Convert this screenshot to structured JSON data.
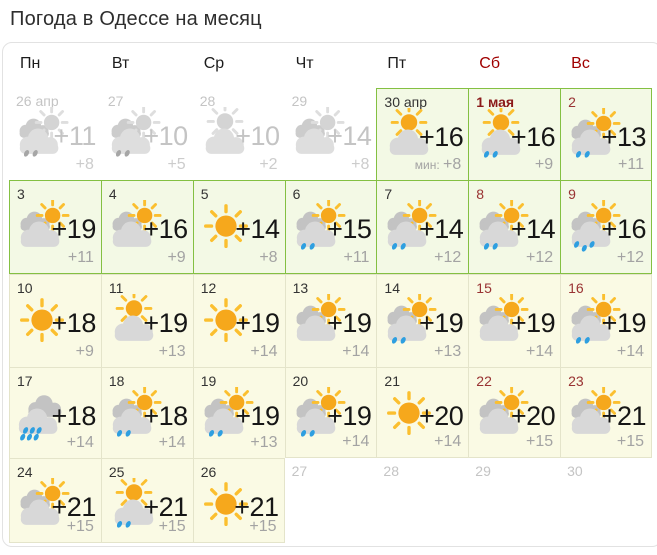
{
  "page": {
    "title": "Погода в Одессе на месяц"
  },
  "weekdays": [
    {
      "label": "Пн",
      "type": "weekday"
    },
    {
      "label": "Вт",
      "type": "weekday"
    },
    {
      "label": "Ср",
      "type": "weekday"
    },
    {
      "label": "Чт",
      "type": "weekday"
    },
    {
      "label": "Пт",
      "type": "weekday"
    },
    {
      "label": "Сб",
      "type": "weekend"
    },
    {
      "label": "Вс",
      "type": "weekend"
    }
  ],
  "days": [
    {
      "date": "26 апр",
      "date_style": "past",
      "cell": "past",
      "icon": "cloud-sun",
      "drops": 2,
      "gray": true,
      "temp": "+11",
      "low": "+8"
    },
    {
      "date": "27",
      "date_style": "past",
      "cell": "past",
      "icon": "cloud-sun",
      "drops": 2,
      "gray": true,
      "temp": "+10",
      "low": "+5"
    },
    {
      "date": "28",
      "date_style": "past",
      "cell": "past",
      "icon": "sun-cloud",
      "drops": 0,
      "gray": true,
      "temp": "+10",
      "low": "+2"
    },
    {
      "date": "29",
      "date_style": "past",
      "cell": "past",
      "icon": "cloud-sun",
      "drops": 0,
      "gray": true,
      "temp": "+14",
      "low": "+8"
    },
    {
      "date": "30 апр",
      "date_style": "normal",
      "cell": "green",
      "icon": "sun-cloud",
      "drops": 0,
      "gray": false,
      "temp": "+16",
      "low": "+8",
      "low_prefix": "мин: "
    },
    {
      "date": "1 мая",
      "date_style": "holiday",
      "cell": "green",
      "icon": "sun-cloud",
      "drops": 2,
      "gray": false,
      "temp": "+16",
      "low": "+9"
    },
    {
      "date": "2",
      "date_style": "weekend",
      "cell": "green",
      "icon": "cloud-sun",
      "drops": 2,
      "gray": false,
      "temp": "+13",
      "low": "+11"
    },
    {
      "date": "3",
      "date_style": "normal",
      "cell": "green",
      "icon": "cloud-sun",
      "drops": 0,
      "gray": false,
      "temp": "+19",
      "low": "+11"
    },
    {
      "date": "4",
      "date_style": "normal",
      "cell": "green",
      "icon": "cloud-sun",
      "drops": 0,
      "gray": false,
      "temp": "+16",
      "low": "+9"
    },
    {
      "date": "5",
      "date_style": "normal",
      "cell": "green",
      "icon": "sun",
      "drops": 0,
      "gray": false,
      "temp": "+14",
      "low": "+8"
    },
    {
      "date": "6",
      "date_style": "normal",
      "cell": "green",
      "icon": "cloud-sun",
      "drops": 2,
      "gray": false,
      "temp": "+15",
      "low": "+11"
    },
    {
      "date": "7",
      "date_style": "normal",
      "cell": "green",
      "icon": "cloud-sun",
      "drops": 2,
      "gray": false,
      "temp": "+14",
      "low": "+12"
    },
    {
      "date": "8",
      "date_style": "weekend",
      "cell": "green",
      "icon": "cloud-sun",
      "drops": 2,
      "gray": false,
      "temp": "+14",
      "low": "+12"
    },
    {
      "date": "9",
      "date_style": "weekend",
      "cell": "green",
      "icon": "cloud-sun",
      "drops": 3,
      "gray": false,
      "temp": "+16",
      "low": "+12"
    },
    {
      "date": "10",
      "date_style": "normal",
      "cell": "yellow",
      "icon": "sun",
      "drops": 0,
      "gray": false,
      "temp": "+18",
      "low": "+9"
    },
    {
      "date": "11",
      "date_style": "normal",
      "cell": "yellow",
      "icon": "sun-cloud",
      "drops": 0,
      "gray": false,
      "temp": "+19",
      "low": "+13"
    },
    {
      "date": "12",
      "date_style": "normal",
      "cell": "yellow",
      "icon": "sun",
      "drops": 0,
      "gray": false,
      "temp": "+19",
      "low": "+14"
    },
    {
      "date": "13",
      "date_style": "normal",
      "cell": "yellow",
      "icon": "cloud-sun",
      "drops": 0,
      "gray": false,
      "temp": "+19",
      "low": "+14"
    },
    {
      "date": "14",
      "date_style": "normal",
      "cell": "yellow",
      "icon": "cloud-sun",
      "drops": 2,
      "gray": false,
      "temp": "+19",
      "low": "+13"
    },
    {
      "date": "15",
      "date_style": "weekend",
      "cell": "yellow",
      "icon": "cloud-sun",
      "drops": 0,
      "gray": false,
      "temp": "+19",
      "low": "+14"
    },
    {
      "date": "16",
      "date_style": "weekend",
      "cell": "yellow",
      "icon": "cloud-sun",
      "drops": 2,
      "gray": false,
      "temp": "+19",
      "low": "+14"
    },
    {
      "date": "17",
      "date_style": "normal",
      "cell": "yellow",
      "icon": "clouds",
      "drops": 6,
      "gray": false,
      "temp": "+18",
      "low": "+14"
    },
    {
      "date": "18",
      "date_style": "normal",
      "cell": "yellow",
      "icon": "cloud-sun",
      "drops": 2,
      "gray": false,
      "temp": "+18",
      "low": "+14"
    },
    {
      "date": "19",
      "date_style": "normal",
      "cell": "yellow",
      "icon": "cloud-sun",
      "drops": 2,
      "gray": false,
      "temp": "+19",
      "low": "+13"
    },
    {
      "date": "20",
      "date_style": "normal",
      "cell": "yellow",
      "icon": "cloud-sun",
      "drops": 2,
      "gray": false,
      "temp": "+19",
      "low": "+14"
    },
    {
      "date": "21",
      "date_style": "normal",
      "cell": "yellow",
      "icon": "sun",
      "drops": 0,
      "gray": false,
      "temp": "+20",
      "low": "+14"
    },
    {
      "date": "22",
      "date_style": "weekend",
      "cell": "yellow",
      "icon": "cloud-sun",
      "drops": 0,
      "gray": false,
      "temp": "+20",
      "low": "+15"
    },
    {
      "date": "23",
      "date_style": "weekend",
      "cell": "yellow",
      "icon": "cloud-sun",
      "drops": 0,
      "gray": false,
      "temp": "+21",
      "low": "+15"
    },
    {
      "date": "24",
      "date_style": "normal",
      "cell": "yellow",
      "icon": "cloud-sun",
      "drops": 0,
      "gray": false,
      "temp": "+21",
      "low": "+15"
    },
    {
      "date": "25",
      "date_style": "normal",
      "cell": "yellow",
      "icon": "sun-cloud",
      "drops": 2,
      "gray": false,
      "temp": "+21",
      "low": "+15"
    },
    {
      "date": "26",
      "date_style": "normal",
      "cell": "yellow",
      "icon": "sun",
      "drops": 0,
      "gray": false,
      "temp": "+21",
      "low": "+15"
    },
    {
      "date": "27",
      "date_style": "future",
      "cell": "future",
      "icon": null,
      "drops": 0,
      "gray": false,
      "temp": "",
      "low": ""
    },
    {
      "date": "28",
      "date_style": "future",
      "cell": "future",
      "icon": null,
      "drops": 0,
      "gray": false,
      "temp": "",
      "low": ""
    },
    {
      "date": "29",
      "date_style": "future",
      "cell": "future",
      "icon": null,
      "drops": 0,
      "gray": false,
      "temp": "",
      "low": ""
    },
    {
      "date": "30",
      "date_style": "future",
      "cell": "future",
      "icon": null,
      "drops": 0,
      "gray": false,
      "temp": "",
      "low": ""
    }
  ],
  "colors": {
    "accent_green": "#84C042",
    "green_cell_bg": "#F3F9E5",
    "yellow_border": "#E4E4CA",
    "yellow_cell_bg": "#FAFAE4",
    "weekend_header": "#A00000",
    "weekend_date": "#993333",
    "holiday_date": "#8B1A1A",
    "normal_date": "#333333",
    "past_text": "#C4C4C4",
    "day_temp": "#161616",
    "night_temp": "#A3A3A3",
    "sun_core": "#F6A81C",
    "sun_ray": "#FBBF2F",
    "cloud_front": "#D8D8D8",
    "cloud_back": "#C3C3C3",
    "rain_drop": "#2E9FE0",
    "gray_icon": "#D6D6D6"
  }
}
